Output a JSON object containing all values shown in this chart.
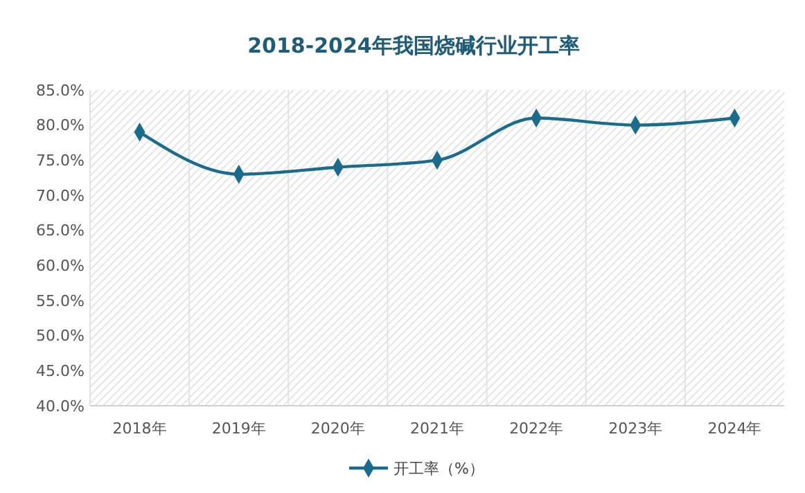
{
  "chart_data": {
    "type": "line",
    "title": "2018-2024年我国烧碱行业开工率",
    "categories": [
      "2018年",
      "2019年",
      "2020年",
      "2021年",
      "2022年",
      "2023年",
      "2024年"
    ],
    "series": [
      {
        "name": "开工率（%）",
        "color": "#1b6b8c",
        "values": [
          79,
          73,
          74,
          75,
          81,
          80,
          81
        ]
      }
    ],
    "ylim": [
      40,
      85
    ],
    "yticks": [
      {
        "value": 40,
        "label": "40.0%"
      },
      {
        "value": 45,
        "label": "45.0%"
      },
      {
        "value": 50,
        "label": "50.0%"
      },
      {
        "value": 55,
        "label": "55.0%"
      },
      {
        "value": 60,
        "label": "60.0%"
      },
      {
        "value": 65,
        "label": "65.0%"
      },
      {
        "value": 70,
        "label": "70.0%"
      },
      {
        "value": 75,
        "label": "75.0%"
      },
      {
        "value": 80,
        "label": "80.0%"
      },
      {
        "value": 85,
        "label": "85.0%"
      }
    ],
    "grid": "x",
    "legend": "bottom",
    "marker": "diamond",
    "line_style": "solid"
  }
}
